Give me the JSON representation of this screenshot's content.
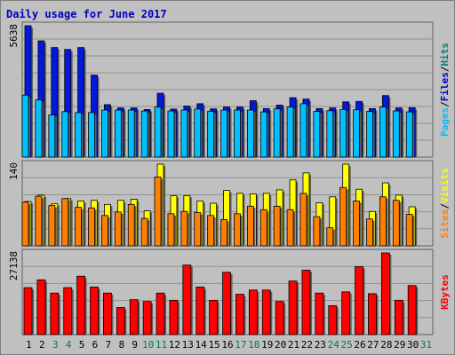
{
  "chart_data": {
    "type": "bar",
    "title": "Daily usage for June 2017",
    "categories": [
      "1",
      "2",
      "3",
      "4",
      "5",
      "6",
      "7",
      "8",
      "9",
      "10",
      "11",
      "12",
      "13",
      "14",
      "15",
      "16",
      "17",
      "18",
      "19",
      "20",
      "21",
      "22",
      "23",
      "24",
      "25",
      "26",
      "27",
      "28",
      "29",
      "30",
      "31"
    ],
    "weekend_days": [
      "3",
      "4",
      "10",
      "11",
      "17",
      "18",
      "24",
      "25",
      "31"
    ],
    "panels": [
      {
        "id": "hits-files",
        "axis_max_label": "5638",
        "ylim": [
          0,
          5638
        ],
        "legend": [
          "Pages",
          "/",
          "Files",
          "/",
          "Hits"
        ],
        "legend_colors": [
          "#00c0ff",
          "#000000",
          "#0000d0",
          "#000000",
          "#008080"
        ],
        "series": [
          {
            "name": "Hits",
            "color": "#0018e0",
            "values": [
              5638,
              4990,
              4700,
              4620,
              4700,
              3520,
              2250,
              2110,
              2110,
              2040,
              2740,
              2060,
              2190,
              2290,
              2070,
              2150,
              2150,
              2420,
              2080,
              2230,
              2550,
              2490,
              2080,
              2110,
              2370,
              2390,
              2080,
              2640,
              2110,
              2120,
              0
            ]
          },
          {
            "name": "Files",
            "color": "#00c0ff",
            "values": [
              2660,
              2460,
              1810,
              1950,
              1910,
              1910,
              2020,
              2020,
              2020,
              1980,
              2150,
              1980,
              2020,
              2060,
              1970,
              2020,
              2020,
              2020,
              1940,
              2070,
              2150,
              2290,
              1960,
              1990,
              2040,
              2030,
              1960,
              2150,
              1980,
              1940,
              0
            ]
          }
        ]
      },
      {
        "id": "visits-sites",
        "axis_max_label": "140",
        "ylim": [
          0,
          140
        ],
        "legend": [
          "Sites",
          "/",
          "Visits"
        ],
        "legend_colors": [
          "#ff8000",
          "#000000",
          "#ffff00"
        ],
        "series": [
          {
            "name": "Visits",
            "color": "#ffff00",
            "values": [
              76,
              87,
              72,
              81,
              77,
              78,
              71,
              78,
              80,
              60,
              140,
              86,
              86,
              77,
              73,
              95,
              90,
              89,
              90,
              96,
              113,
              125,
              74,
              84,
              140,
              97,
              59,
              108,
              87,
              67,
              0
            ]
          },
          {
            "name": "Sites",
            "color": "#ff8000",
            "values": [
              75,
              85,
              69,
              81,
              66,
              65,
              52,
              58,
              71,
              47,
              118,
              55,
              59,
              57,
              52,
              45,
              55,
              68,
              62,
              68,
              62,
              90,
              50,
              31,
              100,
              77,
              46,
              84,
              78,
              54,
              0
            ]
          }
        ]
      },
      {
        "id": "kbytes",
        "axis_max_label": "27138",
        "ylim": [
          0,
          27138
        ],
        "legend": [
          "KBytes"
        ],
        "legend_colors": [
          "#ff0000"
        ],
        "series": [
          {
            "name": "KBytes",
            "color": "#ff0000",
            "values": [
              15600,
              18200,
              13800,
              15600,
              19400,
              15800,
              13800,
              9000,
              11600,
              11000,
              13800,
              11400,
              23100,
              15800,
              11400,
              20700,
              13400,
              14800,
              14800,
              11000,
              17800,
              21400,
              13800,
              9600,
              14200,
              22600,
              13600,
              27138,
              11400,
              16300,
              0
            ]
          }
        ]
      }
    ]
  }
}
